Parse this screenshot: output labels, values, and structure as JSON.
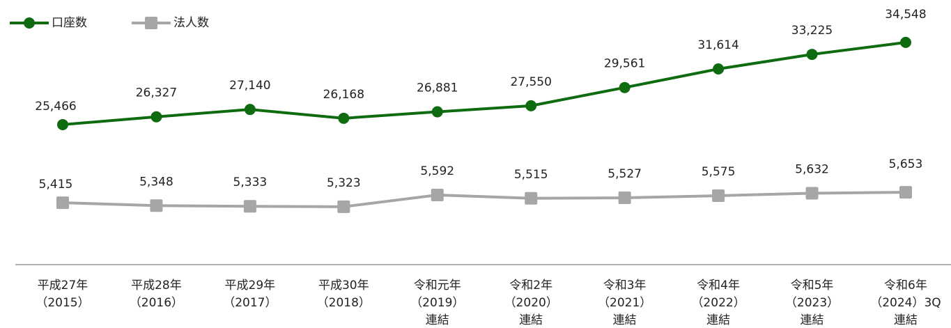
{
  "chart_data": {
    "type": "line",
    "categories": [
      [
        "平成27年",
        "（2015）"
      ],
      [
        "平成28年",
        "（2016）"
      ],
      [
        "平成29年",
        "（2017）"
      ],
      [
        "平成30年",
        "（2018）"
      ],
      [
        "令和元年",
        "（2019）",
        "連結"
      ],
      [
        "令和2年",
        "（2020）",
        "連結"
      ],
      [
        "令和3年",
        "（2021）",
        "連結"
      ],
      [
        "令和4年",
        "（2022）",
        "連結"
      ],
      [
        "令和5年",
        "（2023）",
        "連結"
      ],
      [
        "令和6年",
        "（2024）3Q",
        "連結"
      ]
    ],
    "series": [
      {
        "name": "口座数",
        "color": "#0e6b10",
        "marker": "circle",
        "values": [
          25466,
          26327,
          27140,
          26168,
          26881,
          27550,
          29561,
          31614,
          33225,
          34548
        ],
        "value_labels": [
          "25,466",
          "26,327",
          "27,140",
          "26,168",
          "26,881",
          "27,550",
          "29,561",
          "31,614",
          "33,225",
          "34,548"
        ]
      },
      {
        "name": "法人数",
        "color": "#a6a6a6",
        "marker": "square",
        "axis": "y2",
        "values": [
          5415,
          5348,
          5333,
          5323,
          5592,
          5515,
          5527,
          5575,
          5632,
          5653
        ],
        "value_labels": [
          "5,415",
          "5,348",
          "5,333",
          "5,323",
          "5,592",
          "5,515",
          "5,527",
          "5,575",
          "5,632",
          "5,653"
        ]
      }
    ],
    "ylim": [
      10000,
      39000
    ],
    "y2lim": [
      4000,
      10000
    ],
    "legend": "top-left"
  }
}
